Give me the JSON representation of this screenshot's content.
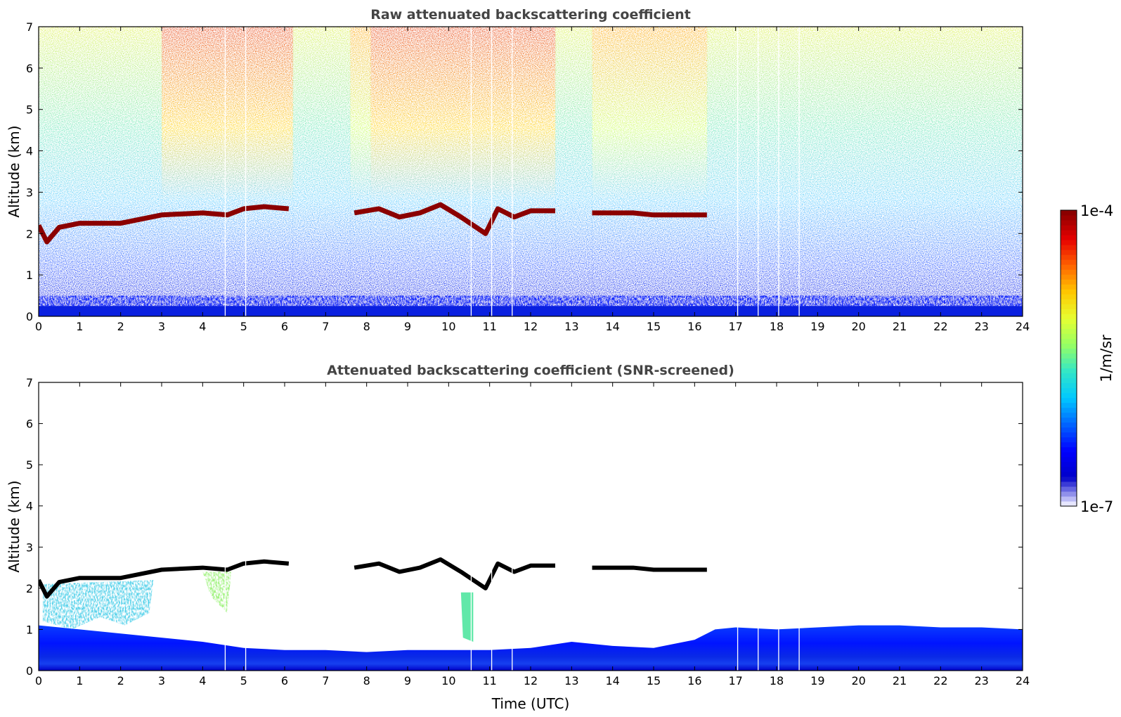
{
  "chart_data": [
    {
      "type": "heatmap",
      "title": "Raw attenuated backscattering coefficient",
      "xlabel": "",
      "ylabel": "Altitude (km)",
      "xlim": [
        0,
        24
      ],
      "ylim": [
        0,
        7
      ],
      "xticks": [
        "0",
        "1",
        "2",
        "3",
        "4",
        "5",
        "6",
        "7",
        "8",
        "9",
        "10",
        "11",
        "12",
        "13",
        "14",
        "15",
        "16",
        "17",
        "18",
        "19",
        "20",
        "21",
        "22",
        "23",
        "24"
      ],
      "yticks": [
        "0",
        "1",
        "2",
        "3",
        "4",
        "5",
        "6",
        "7"
      ],
      "cloud_layer": [
        {
          "time": 0.0,
          "altitude": 2.2
        },
        {
          "time": 0.2,
          "altitude": 1.8
        },
        {
          "time": 0.5,
          "altitude": 2.15
        },
        {
          "time": 1.0,
          "altitude": 2.25
        },
        {
          "time": 2.0,
          "altitude": 2.25
        },
        {
          "time": 3.0,
          "altitude": 2.45
        },
        {
          "time": 4.0,
          "altitude": 2.5
        },
        {
          "time": 4.6,
          "altitude": 2.45
        },
        {
          "time": 5.0,
          "altitude": 2.6
        },
        {
          "time": 5.5,
          "altitude": 2.65
        },
        {
          "time": 6.1,
          "altitude": 2.6
        },
        {
          "time": 7.7,
          "altitude": 2.5
        },
        {
          "time": 8.3,
          "altitude": 2.6
        },
        {
          "time": 8.8,
          "altitude": 2.4
        },
        {
          "time": 9.3,
          "altitude": 2.5
        },
        {
          "time": 9.8,
          "altitude": 2.7
        },
        {
          "time": 10.3,
          "altitude": 2.4
        },
        {
          "time": 10.9,
          "altitude": 2.0
        },
        {
          "time": 11.2,
          "altitude": 2.6
        },
        {
          "time": 11.6,
          "altitude": 2.4
        },
        {
          "time": 12.0,
          "altitude": 2.55
        },
        {
          "time": 12.6,
          "altitude": 2.55
        },
        {
          "time": 13.5,
          "altitude": 2.5
        },
        {
          "time": 14.5,
          "altitude": 2.5
        },
        {
          "time": 15.0,
          "altitude": 2.45
        },
        {
          "time": 16.3,
          "altitude": 2.45
        }
      ],
      "data_gaps": [
        4.55,
        5.05,
        10.55,
        11.05,
        11.55,
        17.05,
        17.55,
        18.05,
        18.55
      ]
    },
    {
      "type": "heatmap",
      "title": "Attenuated backscattering coefficient (SNR-screened)",
      "xlabel": "Time (UTC)",
      "ylabel": "Altitude (km)",
      "xlim": [
        0,
        24
      ],
      "ylim": [
        0,
        7
      ],
      "xticks": [
        "0",
        "1",
        "2",
        "3",
        "4",
        "5",
        "6",
        "7",
        "8",
        "9",
        "10",
        "11",
        "12",
        "13",
        "14",
        "15",
        "16",
        "17",
        "18",
        "19",
        "20",
        "21",
        "22",
        "23",
        "24"
      ],
      "yticks": [
        "0",
        "1",
        "2",
        "3",
        "4",
        "5",
        "6",
        "7"
      ],
      "boundary_layer_top": [
        {
          "time": 0.0,
          "altitude": 1.1
        },
        {
          "time": 1.0,
          "altitude": 1.0
        },
        {
          "time": 2.0,
          "altitude": 0.9
        },
        {
          "time": 3.0,
          "altitude": 0.8
        },
        {
          "time": 4.0,
          "altitude": 0.7
        },
        {
          "time": 5.0,
          "altitude": 0.55
        },
        {
          "time": 6.0,
          "altitude": 0.5
        },
        {
          "time": 7.0,
          "altitude": 0.5
        },
        {
          "time": 8.0,
          "altitude": 0.45
        },
        {
          "time": 9.0,
          "altitude": 0.5
        },
        {
          "time": 10.0,
          "altitude": 0.5
        },
        {
          "time": 11.0,
          "altitude": 0.5
        },
        {
          "time": 12.0,
          "altitude": 0.55
        },
        {
          "time": 13.0,
          "altitude": 0.7
        },
        {
          "time": 14.0,
          "altitude": 0.6
        },
        {
          "time": 15.0,
          "altitude": 0.55
        },
        {
          "time": 16.0,
          "altitude": 0.75
        },
        {
          "time": 16.5,
          "altitude": 1.0
        },
        {
          "time": 17.0,
          "altitude": 1.05
        },
        {
          "time": 18.0,
          "altitude": 1.0
        },
        {
          "time": 19.0,
          "altitude": 1.05
        },
        {
          "time": 20.0,
          "altitude": 1.1
        },
        {
          "time": 21.0,
          "altitude": 1.1
        },
        {
          "time": 22.0,
          "altitude": 1.05
        },
        {
          "time": 23.0,
          "altitude": 1.05
        },
        {
          "time": 24.0,
          "altitude": 1.0
        }
      ],
      "cloud_layer": [
        {
          "time": 0.0,
          "altitude": 2.2
        },
        {
          "time": 0.2,
          "altitude": 1.8
        },
        {
          "time": 0.5,
          "altitude": 2.15
        },
        {
          "time": 1.0,
          "altitude": 2.25
        },
        {
          "time": 2.0,
          "altitude": 2.25
        },
        {
          "time": 3.0,
          "altitude": 2.45
        },
        {
          "time": 4.0,
          "altitude": 2.5
        },
        {
          "time": 4.6,
          "altitude": 2.45
        },
        {
          "time": 5.0,
          "altitude": 2.6
        },
        {
          "time": 5.5,
          "altitude": 2.65
        },
        {
          "time": 6.1,
          "altitude": 2.6
        },
        {
          "time": 7.7,
          "altitude": 2.5
        },
        {
          "time": 8.3,
          "altitude": 2.6
        },
        {
          "time": 8.8,
          "altitude": 2.4
        },
        {
          "time": 9.3,
          "altitude": 2.5
        },
        {
          "time": 9.8,
          "altitude": 2.7
        },
        {
          "time": 10.3,
          "altitude": 2.4
        },
        {
          "time": 10.9,
          "altitude": 2.0
        },
        {
          "time": 11.2,
          "altitude": 2.6
        },
        {
          "time": 11.6,
          "altitude": 2.4
        },
        {
          "time": 12.0,
          "altitude": 2.55
        },
        {
          "time": 12.6,
          "altitude": 2.55
        },
        {
          "time": 13.5,
          "altitude": 2.5
        },
        {
          "time": 14.5,
          "altitude": 2.5
        },
        {
          "time": 15.0,
          "altitude": 2.45
        },
        {
          "time": 16.3,
          "altitude": 2.45
        }
      ],
      "data_gaps": [
        4.55,
        5.05,
        10.55,
        11.05,
        11.55,
        17.05,
        17.55,
        18.05,
        18.55
      ]
    }
  ],
  "colorbar": {
    "label": "1/m/sr",
    "max_label": "1e-4",
    "min_label": "1e-7",
    "scale": "log",
    "colormap": "jet",
    "stops": [
      "#e6e6ff",
      "#0000c8",
      "#0000ff",
      "#0064ff",
      "#00c8ff",
      "#32e6c8",
      "#96ff64",
      "#e6ff32",
      "#ffc800",
      "#ff6400",
      "#e60000",
      "#8b0000"
    ]
  },
  "colors": {
    "title": "#444444",
    "cloud_raw": "#8b0000",
    "cloud_screened": "#000000",
    "gap": "#ffffff"
  }
}
